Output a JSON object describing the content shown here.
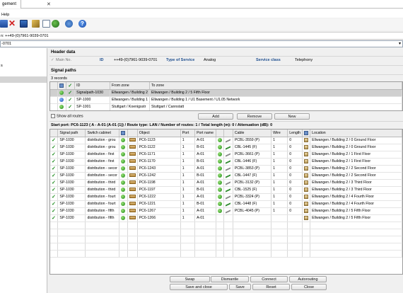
{
  "window": {
    "tab_title": "gement",
    "close_glyph": "✕"
  },
  "menubar": {
    "help": "Help"
  },
  "toolbar": {
    "icons": [
      "save-icon",
      "delete-icon",
      "window-icon",
      "brush-icon",
      "document-icon",
      "group-icon",
      "refresh-icon",
      "help-icon"
    ]
  },
  "addressbar": {
    "text": "n: ++49-(0)7961-9039-0701"
  },
  "combo": {
    "value": "-0701"
  },
  "leftpanel": {
    "items": [
      "s",
      ""
    ]
  },
  "header": {
    "section": "Header data",
    "main_no_label": "Main No.",
    "id_label": "ID",
    "id_value": "++49-(0)7961-9039-0701",
    "service_type_label": "Type of Service",
    "service_type_value": "Analog",
    "service_class_label": "Service class",
    "service_class_value": "Telephony"
  },
  "signal_paths": {
    "section": "Signal paths",
    "count": "3 records",
    "columns": [
      "",
      "",
      "",
      "ID",
      "From zone",
      "To zone"
    ],
    "rows": [
      {
        "id": "Signalpath-1030",
        "from": "Ellwangen / Building 2",
        "to": "Ellwangen / Building 2 / 5 Fifth Floor",
        "ball": "green"
      },
      {
        "id": "SP-1000",
        "from": "Ellwangen / Building 1",
        "to": "Ellwangen / Building 1 / U1 Basement / U1.05 Network",
        "ball": "blue"
      },
      {
        "id": "SP-1001",
        "from": "Stuttgart / Koenigsstr",
        "to": "Stuttgart / Cannstatt",
        "ball": "green"
      }
    ],
    "show_all": "Show all routes",
    "add": "Add",
    "remove": "Remove",
    "new": "New"
  },
  "route_info": "Start port: PC6-1123 ( A - A-01 (A-01 (1)) / Route type: LAN / Number of routes: 1 / Total length (m): 0 / Attenuation (dB): 0",
  "route_table": {
    "columns": [
      "",
      "Signal path",
      "Switch cabinet",
      "",
      "",
      "Object",
      "Port",
      "Port name",
      "",
      "",
      "Cable",
      "Wire",
      "Length",
      "",
      "Location"
    ],
    "rows": [
      {
        "sp": "SP-1030",
        "cab": "distribution - grou",
        "obj": "PC6-1123",
        "port": "1",
        "pname": "A-01",
        "ball": "green",
        "cable": "PCBL-3559 (P)",
        "wire": "1",
        "len": "0",
        "loc": "Ellwangen / Building 2 / 0 Ground Floor"
      },
      {
        "sp": "SP-1030",
        "cab": "distribution - grou",
        "obj": "PC6-1122",
        "port": "1",
        "pname": "B-01",
        "ball": "green",
        "cable": "CBL-1445 (F)",
        "wire": "1",
        "len": "0",
        "loc": "Ellwangen / Building 2 / 0 Ground Floor"
      },
      {
        "sp": "SP-1030",
        "cab": "distribution - first",
        "obj": "PC6-1171",
        "port": "1",
        "pname": "A-01",
        "ball": "green",
        "cable": "PCBL-3661 (P)",
        "wire": "1",
        "len": "0",
        "loc": "Ellwangen / Building 2 / 1 First Floor"
      },
      {
        "sp": "SP-1030",
        "cab": "distribution - first",
        "obj": "PC6-1170",
        "port": "1",
        "pname": "B-01",
        "ball": "green",
        "cable": "CBL-1446 (F)",
        "wire": "1",
        "len": "0",
        "loc": "Ellwangen / Building 2 / 1 First Floor"
      },
      {
        "sp": "SP-1030",
        "cab": "distribution - secor",
        "obj": "PC6-1243",
        "port": "1",
        "pname": "A-01",
        "ball": "green",
        "cable": "PCBL-3853 (P)",
        "wire": "1",
        "len": "0",
        "loc": "Ellwangen / Building 2 / 2 Second Floor"
      },
      {
        "sp": "SP-1030",
        "cab": "distribution - secor",
        "obj": "PC6-1242",
        "port": "1",
        "pname": "B-01",
        "ball": "green",
        "cable": "CBL-1447 (F)",
        "wire": "1",
        "len": "0",
        "loc": "Ellwangen / Building 2 / 2 Second Floor"
      },
      {
        "sp": "SP-1030",
        "cab": "distribution - third",
        "obj": "PC6-1198",
        "port": "1",
        "pname": "A-01",
        "ball": "green",
        "cable": "PCBL-3132 (P)",
        "wire": "1",
        "len": "0",
        "loc": "Ellwangen / Building 2 / 3 Third Floor"
      },
      {
        "sp": "SP-1030",
        "cab": "distribution - third",
        "obj": "PC6-1197",
        "port": "1",
        "pname": "B-01",
        "ball": "green",
        "cable": "CBL-1525 (F)",
        "wire": "1",
        "len": "0",
        "loc": "Ellwangen / Building 2 / 3 Third Floor"
      },
      {
        "sp": "SP-1030",
        "cab": "distribution - fourt",
        "obj": "PC6-1222",
        "port": "1",
        "pname": "A-01",
        "ball": "green",
        "cable": "PCBL-3324 (P)",
        "wire": "1",
        "len": "0",
        "loc": "Ellwangen / Building 2 / 4 Fourth Floor"
      },
      {
        "sp": "SP-1030",
        "cab": "distribution - fourt",
        "obj": "PC6-1221",
        "port": "1",
        "pname": "B-01",
        "ball": "green",
        "cable": "CBL-1448 (F)",
        "wire": "1",
        "len": "0",
        "loc": "Ellwangen / Building 2 / 4 Fourth Floor"
      },
      {
        "sp": "SP-1030",
        "cab": "distribution - fifth",
        "obj": "PC6-1267",
        "port": "1",
        "pname": "A-01",
        "ball": "green",
        "cable": "PCBL-4045 (P)",
        "wire": "1",
        "len": "0",
        "loc": "Ellwangen / Building 2 / 5 Fifth Floor"
      },
      {
        "sp": "SP-1030",
        "cab": "distribution - fifth",
        "obj": "PC6-1266",
        "port": "1",
        "pname": "A-01",
        "ball": "",
        "cable": "",
        "wire": "",
        "len": "",
        "loc": "Ellwangen / Building 2 / 5 Fifth Floor"
      }
    ]
  },
  "bottom_buttons": {
    "swap": "Swap",
    "dismantle": "Dismantle",
    "connect": "Connect",
    "autorouting": "Autorouting",
    "save_close": "Save and close",
    "save": "Save",
    "reset": "Reset",
    "close": "Close"
  },
  "colors": {
    "accent_blue": "#1f4f8f",
    "check_green": "#1d8b1d",
    "selected_row": "#cfcfcf"
  }
}
